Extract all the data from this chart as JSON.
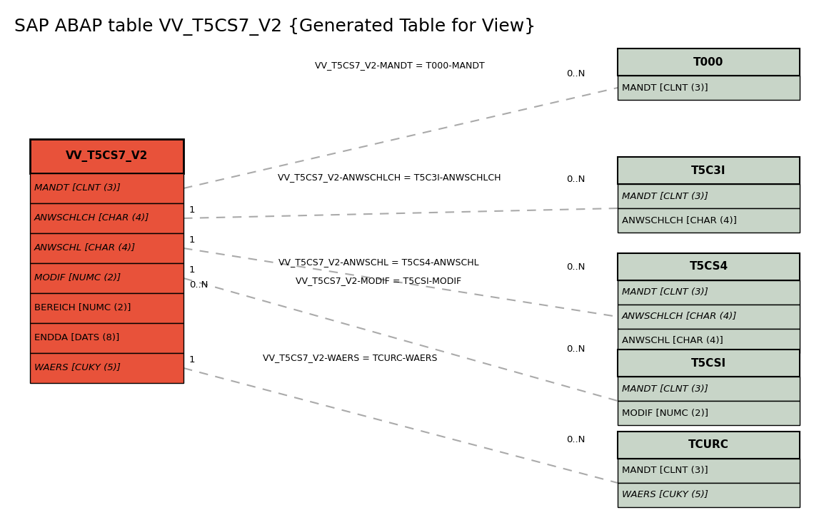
{
  "title": "SAP ABAP table VV_T5CS7_V2 {Generated Table for View}",
  "title_fontsize": 18,
  "bg_color": "#ffffff",
  "main_table": {
    "name": "VV_T5CS7_V2",
    "header_bg": "#e8523a",
    "row_bg": "#e8523a",
    "fields": [
      {
        "text": "MANDT [CLNT (3)]",
        "italic": true,
        "underline": true
      },
      {
        "text": "ANWSCHLCH [CHAR (4)]",
        "italic": true,
        "underline": true
      },
      {
        "text": "ANWSCHL [CHAR (4)]",
        "italic": true,
        "underline": true
      },
      {
        "text": "MODIF [NUMC (2)]",
        "italic": true,
        "underline": true
      },
      {
        "text": "BEREICH [NUMC (2)]",
        "italic": false,
        "underline": true
      },
      {
        "text": "ENDDA [DATS (8)]",
        "italic": false,
        "underline": true
      },
      {
        "text": "WAERS [CUKY (5)]",
        "italic": true,
        "underline": false
      }
    ]
  },
  "related_tables": [
    {
      "name": "T000",
      "header_bg": "#c8d5c8",
      "row_bg": "#c8d5c8",
      "fields": [
        {
          "text": "MANDT [CLNT (3)]",
          "italic": false,
          "underline": true
        }
      ]
    },
    {
      "name": "T5C3I",
      "header_bg": "#c8d5c8",
      "row_bg": "#c8d5c8",
      "fields": [
        {
          "text": "MANDT [CLNT (3)]",
          "italic": true,
          "underline": true
        },
        {
          "text": "ANWSCHLCH [CHAR (4)]",
          "italic": false,
          "underline": true
        }
      ]
    },
    {
      "name": "T5CS4",
      "header_bg": "#c8d5c8",
      "row_bg": "#c8d5c8",
      "fields": [
        {
          "text": "MANDT [CLNT (3)]",
          "italic": true,
          "underline": true
        },
        {
          "text": "ANWSCHLCH [CHAR (4)]",
          "italic": true,
          "underline": true
        },
        {
          "text": "ANWSCHL [CHAR (4)]",
          "italic": false,
          "underline": false
        }
      ]
    },
    {
      "name": "T5CSI",
      "header_bg": "#c8d5c8",
      "row_bg": "#c8d5c8",
      "fields": [
        {
          "text": "MANDT [CLNT (3)]",
          "italic": true,
          "underline": true
        },
        {
          "text": "MODIF [NUMC (2)]",
          "italic": false,
          "underline": false
        }
      ]
    },
    {
      "name": "TCURC",
      "header_bg": "#c8d5c8",
      "row_bg": "#c8d5c8",
      "fields": [
        {
          "text": "MANDT [CLNT (3)]",
          "italic": false,
          "underline": false
        },
        {
          "text": "WAERS [CUKY (5)]",
          "italic": true,
          "underline": false
        }
      ]
    }
  ],
  "connections": [
    {
      "from_field": 0,
      "to_table": 0,
      "label": "VV_T5CS7_V2-MANDT = T000-MANDT",
      "left_card": "",
      "right_card": "0..N"
    },
    {
      "from_field": 1,
      "to_table": 1,
      "label": "VV_T5CS7_V2-ANWSCHLCH = T5C3I-ANWSCHLCH",
      "left_card": "1",
      "right_card": "0..N"
    },
    {
      "from_field": 2,
      "to_table": 2,
      "label": "VV_T5CS7_V2-ANWSCHL = T5CS4-ANWSCHL",
      "left_card": "1",
      "right_card": "0..N"
    },
    {
      "from_field": 3,
      "to_table": 3,
      "label": "VV_T5CS7_V2-MODIF = T5CSI-MODIF",
      "left_card": "1",
      "right_card": "0..N"
    },
    {
      "from_field": 6,
      "to_table": 4,
      "label": "VV_T5CS7_V2-WAERS = TCURC-WAERS",
      "left_card": "1",
      "right_card": "0..N"
    }
  ],
  "line_color": "#aaaaaa",
  "border_color": "#000000"
}
